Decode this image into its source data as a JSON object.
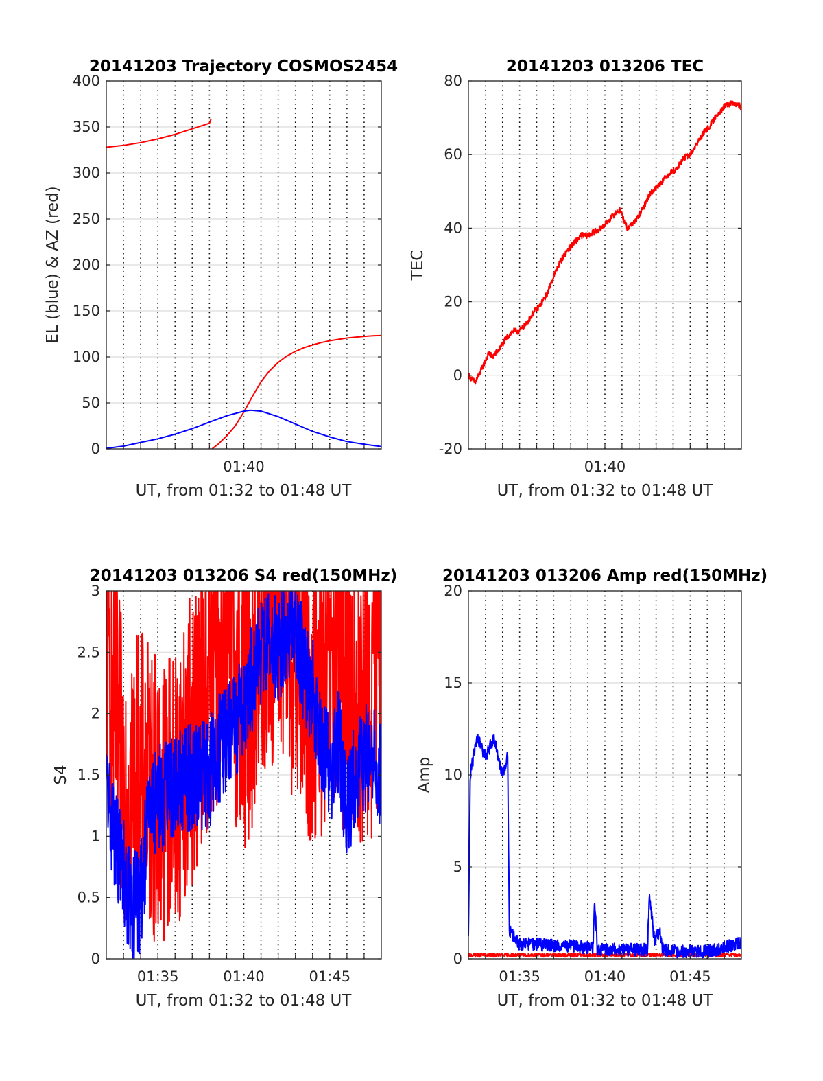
{
  "chart_data": [
    {
      "id": "trajectory",
      "type": "line",
      "title": "20141203 Trajectory COSMOS2454",
      "xlabel": "UT, from 01:32 to 01:48 UT",
      "ylabel": "EL (blue) & AZ (red)",
      "xlim": [
        0,
        16
      ],
      "ylim": [
        0,
        400
      ],
      "yticks": [
        0,
        50,
        100,
        150,
        200,
        250,
        300,
        350,
        400
      ],
      "xtick_labels": [
        {
          "x": 8,
          "label": "01:40"
        }
      ],
      "grid": "minute-dotted-vertical, horizontal-solid",
      "series": [
        {
          "color": "#ff0000",
          "segments": [
            [
              [
                0,
                328
              ],
              [
                1,
                330
              ],
              [
                2,
                333
              ],
              [
                3,
                337
              ],
              [
                4,
                342
              ],
              [
                5,
                348
              ],
              [
                6,
                354
              ],
              [
                6.1,
                359
              ]
            ],
            [
              [
                6.15,
                0
              ],
              [
                6.5,
                5
              ],
              [
                7,
                14
              ],
              [
                7.5,
                25
              ],
              [
                8,
                40
              ],
              [
                8.5,
                57
              ],
              [
                9,
                73
              ],
              [
                9.5,
                85
              ],
              [
                10,
                94
              ],
              [
                10.5,
                101
              ],
              [
                11,
                106
              ],
              [
                11.5,
                110
              ],
              [
                12,
                113
              ],
              [
                12.5,
                115.5
              ],
              [
                13,
                117.5
              ],
              [
                13.5,
                119
              ],
              [
                14,
                120.5
              ],
              [
                14.5,
                121.5
              ],
              [
                15,
                122.3
              ],
              [
                15.5,
                122.9
              ],
              [
                16,
                123.3
              ]
            ]
          ]
        },
        {
          "color": "#0000ff",
          "segments": [
            [
              [
                0,
                0.5
              ],
              [
                1,
                3
              ],
              [
                2,
                7
              ],
              [
                3,
                11
              ],
              [
                4,
                16
              ],
              [
                5,
                22
              ],
              [
                6,
                29
              ],
              [
                7,
                36
              ],
              [
                8,
                41
              ],
              [
                8.4,
                42
              ],
              [
                9,
                41
              ],
              [
                10,
                35
              ],
              [
                11,
                27
              ],
              [
                12,
                19
              ],
              [
                13,
                13
              ],
              [
                14,
                8
              ],
              [
                15,
                5
              ],
              [
                16,
                2.5
              ]
            ]
          ]
        }
      ]
    },
    {
      "id": "tec",
      "type": "line",
      "title": "20141203 013206 TEC",
      "xlabel": "UT, from 01:32 to 01:48 UT",
      "ylabel": "TEC",
      "xlim": [
        0,
        16
      ],
      "ylim": [
        -20,
        80
      ],
      "yticks": [
        -20,
        0,
        20,
        40,
        60,
        80
      ],
      "xtick_labels": [
        {
          "x": 8,
          "label": "01:40"
        }
      ],
      "series": [
        {
          "color": "#ff0000",
          "noise": 0.8,
          "segments": [
            [
              [
                0,
                0
              ],
              [
                0.4,
                -2
              ],
              [
                0.8,
                2
              ],
              [
                1.2,
                6
              ],
              [
                1.4,
                5
              ],
              [
                1.8,
                7
              ],
              [
                2.2,
                10
              ],
              [
                2.6,
                12
              ],
              [
                3,
                12
              ],
              [
                3.4,
                14
              ],
              [
                3.8,
                17
              ],
              [
                4.2,
                19
              ],
              [
                4.6,
                22
              ],
              [
                5,
                27
              ],
              [
                5.4,
                31
              ],
              [
                5.8,
                34
              ],
              [
                6.2,
                36
              ],
              [
                6.6,
                38
              ],
              [
                7,
                38
              ],
              [
                7.4,
                39
              ],
              [
                7.8,
                40
              ],
              [
                8.2,
                42
              ],
              [
                8.6,
                44
              ],
              [
                8.9,
                45
              ],
              [
                9.3,
                40
              ],
              [
                9.8,
                42
              ],
              [
                10.2,
                45
              ],
              [
                10.6,
                49
              ],
              [
                11,
                51
              ],
              [
                11.4,
                53
              ],
              [
                11.8,
                55
              ],
              [
                12.2,
                56
              ],
              [
                12.6,
                59
              ],
              [
                13,
                60
              ],
              [
                13.4,
                63
              ],
              [
                13.8,
                66
              ],
              [
                14.2,
                68
              ],
              [
                14.6,
                71
              ],
              [
                15,
                73
              ],
              [
                15.4,
                74
              ],
              [
                16,
                73
              ]
            ]
          ]
        }
      ]
    },
    {
      "id": "s4",
      "type": "line",
      "title": "20141203 013206 S4 red(150MHz)",
      "xlabel": "UT, from 01:32 to 01:48 UT",
      "ylabel": "S4",
      "xlim": [
        0,
        16
      ],
      "ylim": [
        0,
        3
      ],
      "yticks": [
        0,
        0.5,
        1,
        1.5,
        2,
        2.5,
        3
      ],
      "ytick_labels": [
        "0",
        "0.5",
        "1",
        "1.5",
        "2",
        "2.5",
        "3"
      ],
      "xtick_labels": [
        {
          "x": 3,
          "label": "01:35"
        },
        {
          "x": 8,
          "label": "01:40"
        },
        {
          "x": 13,
          "label": "01:45"
        }
      ],
      "series": [
        {
          "color": "#ff0000",
          "noise": 1.2,
          "segments": [
            [
              [
                0,
                2.5
              ],
              [
                1,
                1.5
              ],
              [
                2,
                1.5
              ],
              [
                3,
                1.3
              ],
              [
                4,
                1.4
              ],
              [
                5,
                1.8
              ],
              [
                6,
                2.3
              ],
              [
                7,
                2.6
              ],
              [
                8,
                2.0
              ],
              [
                9,
                2.5
              ],
              [
                10,
                2.8
              ],
              [
                11,
                2.4
              ],
              [
                12,
                2.0
              ],
              [
                13,
                2.3
              ],
              [
                14,
                2.2
              ],
              [
                15,
                2.0
              ],
              [
                16,
                2.4
              ]
            ]
          ]
        },
        {
          "color": "#0000ff",
          "noise": 0.45,
          "segments": [
            [
              [
                0,
                1.4
              ],
              [
                0.5,
                1.0
              ],
              [
                1,
                0.7
              ],
              [
                1.5,
                0.4
              ],
              [
                2,
                0.5
              ],
              [
                2.5,
                1.2
              ],
              [
                3,
                1.3
              ],
              [
                4,
                1.4
              ],
              [
                5,
                1.5
              ],
              [
                6,
                1.5
              ],
              [
                6.5,
                1.7
              ],
              [
                7,
                1.8
              ],
              [
                7.5,
                1.9
              ],
              [
                8,
                2.1
              ],
              [
                8.5,
                2.3
              ],
              [
                9,
                2.5
              ],
              [
                9.5,
                2.6
              ],
              [
                10,
                2.5
              ],
              [
                10.5,
                2.7
              ],
              [
                11,
                2.8
              ],
              [
                11.5,
                2.3
              ],
              [
                12,
                2.2
              ],
              [
                12.5,
                1.8
              ],
              [
                13,
                1.5
              ],
              [
                13.5,
                1.8
              ],
              [
                14,
                1.2
              ],
              [
                14.5,
                1.5
              ],
              [
                15,
                1.6
              ],
              [
                15.5,
                1.7
              ],
              [
                16,
                1.5
              ]
            ]
          ]
        }
      ]
    },
    {
      "id": "amp",
      "type": "line",
      "title": "20141203 013206 Amp red(150MHz)",
      "xlabel": "UT, from 01:32 to 01:48 UT",
      "ylabel": "Amp",
      "xlim": [
        0,
        16
      ],
      "ylim": [
        0,
        20
      ],
      "yticks": [
        0,
        5,
        10,
        15,
        20
      ],
      "xtick_labels": [
        {
          "x": 3,
          "label": "01:35"
        },
        {
          "x": 8,
          "label": "01:40"
        },
        {
          "x": 13,
          "label": "01:45"
        }
      ],
      "series": [
        {
          "color": "#ff0000",
          "noise": 0.1,
          "segments": [
            [
              [
                0,
                0.2
              ],
              [
                16,
                0.2
              ]
            ]
          ]
        },
        {
          "color": "#0000ff",
          "noise": 0.35,
          "segments": [
            [
              [
                0,
                1
              ],
              [
                0.1,
                10
              ],
              [
                0.5,
                12
              ],
              [
                1,
                11
              ],
              [
                1.5,
                12
              ],
              [
                2,
                10
              ],
              [
                2.3,
                11
              ],
              [
                2.4,
                1.5
              ],
              [
                3,
                0.8
              ],
              [
                4,
                0.8
              ],
              [
                5,
                0.7
              ],
              [
                6,
                0.7
              ],
              [
                7,
                0.6
              ],
              [
                7.3,
                0.6
              ],
              [
                7.4,
                3.2
              ],
              [
                7.55,
                0.5
              ],
              [
                8,
                0.5
              ],
              [
                9,
                0.5
              ],
              [
                10,
                0.5
              ],
              [
                10.5,
                0.5
              ],
              [
                10.6,
                3.5
              ],
              [
                10.9,
                1.0
              ],
              [
                11.2,
                1.5
              ],
              [
                11.4,
                0.5
              ],
              [
                12,
                0.4
              ],
              [
                13,
                0.4
              ],
              [
                14,
                0.4
              ],
              [
                15,
                0.6
              ],
              [
                16,
                0.9
              ]
            ]
          ]
        }
      ]
    }
  ]
}
